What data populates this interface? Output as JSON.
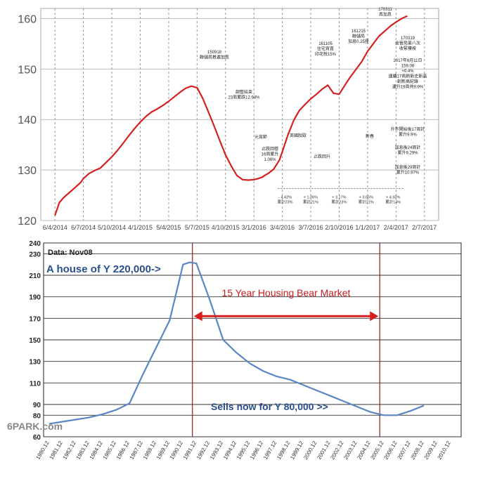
{
  "chart_data": [
    {
      "type": "line",
      "title": "",
      "xlabel": "",
      "ylabel": "",
      "ylim": [
        120,
        162
      ],
      "yticks": [
        "160",
        "150",
        "140",
        "130",
        "120"
      ],
      "xticks": [
        "6/4/2014",
        "6/7/2014",
        "5/10/2014",
        "4/1/2015",
        "5/4/2015",
        "5/7/2015",
        "4/10/2015",
        "3/1/2016",
        "3/4/2016",
        "3/7/2016",
        "2/10/2016",
        "1/1/2017",
        "2/4/2017",
        "2/7/2017"
      ],
      "grid": true,
      "line_color": "#d62020",
      "series": [
        {
          "x": [
            1.0,
            1.15,
            1.3,
            1.5,
            1.7,
            1.9,
            2.0,
            2.2,
            2.4,
            2.6,
            2.8,
            3.0,
            3.2,
            3.4,
            3.6,
            3.8,
            4.0,
            4.2,
            4.4,
            4.6,
            4.8,
            5.0,
            5.2,
            5.4,
            5.6,
            5.8,
            6.0,
            6.2,
            6.4,
            6.6,
            6.8,
            7.0,
            7.2,
            7.4,
            7.6,
            7.8,
            8.0,
            8.15,
            8.3,
            8.4,
            8.5,
            8.7,
            8.9,
            9.0,
            9.2,
            9.4,
            9.6,
            9.8,
            10.0,
            10.2,
            10.4,
            10.6,
            10.8,
            11.0,
            11.2,
            11.4,
            11.6,
            11.8,
            12.0,
            12.2,
            12.4,
            12.6,
            12.8,
            13.0,
            13.2,
            13.4
          ],
          "values": [
            121,
            123.5,
            124.5,
            125.5,
            126.5,
            127.5,
            128.3,
            129.3,
            129.9,
            130.4,
            131.5,
            132.6,
            133.9,
            135.3,
            136.8,
            138.2,
            139.5,
            140.6,
            141.5,
            142.1,
            142.8,
            143.6,
            144.5,
            145.4,
            146.2,
            146.6,
            146.3,
            144.2,
            141.5,
            138.7,
            135.8,
            133.0,
            130.8,
            128.9,
            128.1,
            128.0,
            128.1,
            128.3,
            128.6,
            129.0,
            129.3,
            130.2,
            132.0,
            133.6,
            137.0,
            139.8,
            141.8,
            143.0,
            144.1,
            145.0,
            146.0,
            146.8,
            145.2,
            145.0,
            146.8,
            148.5,
            150.0,
            151.5,
            153.5,
            155.0,
            156.5,
            157.5,
            158.5,
            159.3,
            160.0,
            160.5
          ]
        }
      ],
      "annotations": [
        "150918\n聯儲局推遲加息",
        "調整結束\n23周累跌12.94%",
        "元宵節",
        "止跌回穩\n16周累升\n1.06%",
        "英國脫歐",
        "止跌回升",
        "161105\n住宅買賣\n印花稅15%",
        "161215\n聯儲局\n加息0.25厘",
        "170311\n再加息",
        "170319\n金管局第八次\n收緊樓按",
        "2017年6月11日\n159.08\n+0.4%\n連續17周刷新史新高\n創新高紀錄\n連升19周共9.9%",
        "新春",
        "升市開始後17周計\n累升9.9%",
        "加息後24周計\n累升9.29%",
        "加息後29周計\n累升10.97%"
      ],
      "period_labels": [
        "- 4.42%\n累計23%",
        "+ 1.06%\n累計21%",
        "+ 3.17%\n累計23%",
        "+ 3.65%\n累計21%",
        "+ 4.50%\n累計14%"
      ]
    },
    {
      "type": "line",
      "title": "Data: Nov08",
      "xlabel": "",
      "ylabel": "",
      "ylim": [
        60,
        240
      ],
      "yticks": [
        "240",
        "230",
        "210",
        "190",
        "170",
        "150",
        "130",
        "110",
        "90",
        "80",
        "60"
      ],
      "categories": [
        "1980.12",
        "1981.12",
        "1982.12",
        "1983.12",
        "1984.12",
        "1985.12",
        "1986.12",
        "1987.12",
        "1988.12",
        "1989.12",
        "1990.12",
        "1991.12",
        "1992.12",
        "1993.12",
        "1994.12",
        "1995.12",
        "1996.12",
        "1997.12",
        "1998.12",
        "1999.12",
        "2000.12",
        "2001.12",
        "2002.12",
        "2003.12",
        "2004.12",
        "2005.12",
        "2006.12",
        "2007.12",
        "2008.12",
        "2009.12",
        "2010.12"
      ],
      "grid": true,
      "line_color": "#5b86c4",
      "series": [
        {
          "x": [
            1980.5,
            1981.5,
            1982.5,
            1983.5,
            1984.5,
            1985.5,
            1986.5,
            1987.5,
            1988.5,
            1989.5,
            1990.5,
            1991.0,
            1991.5,
            1992.5,
            1993.5,
            1994.5,
            1995.5,
            1996.5,
            1997.5,
            1998.5,
            1999.5,
            2000.5,
            2001.5,
            2002.5,
            2003.5,
            2004.5,
            2005.5,
            2006.5,
            2007.5,
            2008.5
          ],
          "values": [
            72,
            74,
            76,
            78,
            81,
            85,
            91,
            118,
            143,
            168,
            220,
            222,
            221,
            187,
            150,
            138,
            128,
            121,
            116,
            113,
            108,
            103,
            98,
            93,
            88,
            83,
            80,
            80,
            84,
            89
          ]
        }
      ],
      "annotations": [
        "A house of Y 220,000->",
        "15 Year Housing Bear Market",
        "Sells now for Y 80,000 >>"
      ],
      "watermark": "6PARK.com"
    }
  ]
}
